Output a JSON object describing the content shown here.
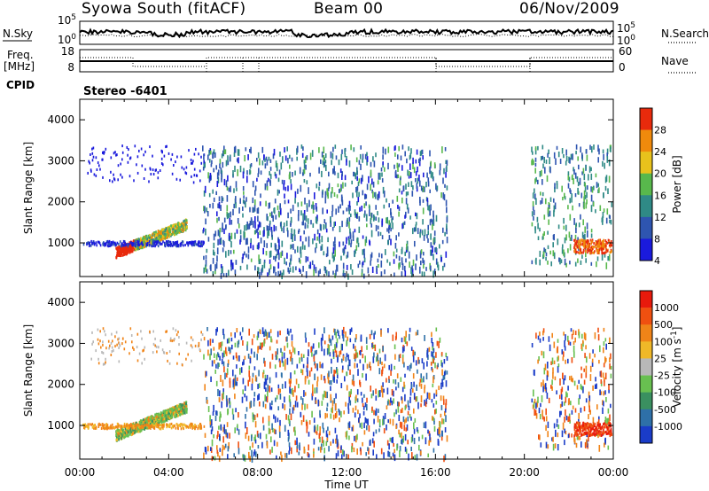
{
  "header": {
    "site": "Syowa South (fitACF)",
    "beam": "Beam 00",
    "date": "06/Nov/2009"
  },
  "strip": {
    "nsky_label": "N.Sky",
    "nsearch_label": "N.Search",
    "freq_label": "Freq.",
    "freq_unit": "[MHz]",
    "nave_label": "Nave",
    "cpid_label": "CPID",
    "stereo_text": "Stereo -6401",
    "noise_left_ticks": [
      "10^5",
      "10^0"
    ],
    "noise_right_ticks": [
      "10^5",
      "10^0"
    ],
    "freq_ticks": [
      "18",
      "8"
    ],
    "nave_ticks": [
      "60",
      "0"
    ]
  },
  "chart_data": [
    {
      "type": "heatmap",
      "name": "power",
      "title": "",
      "xlabel": "",
      "ylabel": "Slant Range [km]",
      "xlim": [
        0,
        24
      ],
      "ylim": [
        180,
        4500
      ],
      "y_ticks": [
        1000,
        2000,
        3000,
        4000
      ],
      "colorbar": {
        "label": "Power [dB]",
        "tick_labels": [
          "28",
          "24",
          "20",
          "16",
          "12",
          "8",
          "4"
        ],
        "range": [
          0,
          30
        ],
        "colors": [
          "#1a1adc",
          "#2e55b0",
          "#2f8a86",
          "#58b84c",
          "#e8c21c",
          "#f08a0c",
          "#e82a0c"
        ]
      },
      "echo_regions": [
        {
          "label": "E-region band",
          "t": [
            1.5,
            4.8
          ],
          "range": [
            700,
            1500
          ],
          "value_range": [
            10,
            22
          ]
        },
        {
          "label": "scattered echoes",
          "t": [
            5.5,
            16.5
          ],
          "range": [
            300,
            3400
          ],
          "value_range": [
            4,
            12
          ]
        },
        {
          "label": "late echoes",
          "t": [
            22.0,
            24.0
          ],
          "range": [
            700,
            1100
          ],
          "value_range": [
            16,
            28
          ]
        }
      ]
    },
    {
      "type": "heatmap",
      "name": "velocity",
      "title": "",
      "xlabel": "Time UT",
      "ylabel": "Slant Range [km]",
      "xlim": [
        0,
        24
      ],
      "ylim": [
        180,
        4500
      ],
      "x_tick_labels": [
        "00:00",
        "04:00",
        "08:00",
        "12:00",
        "16:00",
        "20:00",
        "00:00"
      ],
      "y_ticks": [
        1000,
        2000,
        3000,
        4000
      ],
      "colorbar": {
        "label": "Velocity [m s^-1]",
        "tick_labels": [
          "1000",
          "500",
          "100",
          "25",
          "-25",
          "-100",
          "-500",
          "-1000"
        ],
        "colors": [
          "#1a3cc8",
          "#2e70a8",
          "#3a9060",
          "#68c050",
          "#b8b8b8",
          "#f0b828",
          "#f08418",
          "#f05010",
          "#e81a0c"
        ]
      }
    }
  ]
}
